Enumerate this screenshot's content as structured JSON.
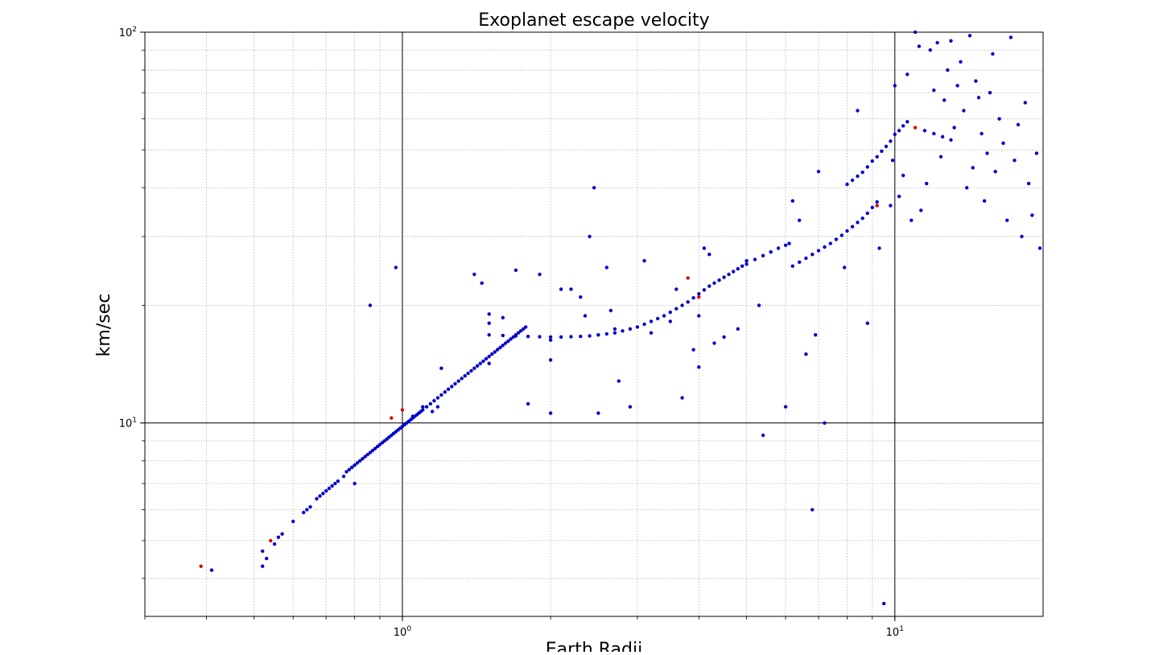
{
  "chart_data": {
    "type": "scatter",
    "title": "Exoplanet escape velocity",
    "xlabel": "Earth Radii",
    "ylabel": "km/sec",
    "x_scale": "log",
    "y_scale": "log",
    "xlim": [
      0.3,
      20
    ],
    "ylim": [
      3.2,
      100
    ],
    "grid": true,
    "legend": "none",
    "x_major_ticks": [
      {
        "value": 1,
        "base": "10",
        "exp": "0"
      },
      {
        "value": 10,
        "base": "10",
        "exp": "1"
      }
    ],
    "y_major_ticks": [
      {
        "value": 10,
        "base": "10",
        "exp": "1"
      },
      {
        "value": 100,
        "base": "10",
        "exp": "2"
      }
    ],
    "series": [
      {
        "color": "#0000cc",
        "points": [
          [
            0.41,
            4.2
          ],
          [
            0.52,
            4.7
          ],
          [
            0.52,
            4.3
          ],
          [
            0.53,
            4.5
          ],
          [
            0.55,
            4.9
          ],
          [
            0.56,
            5.1
          ],
          [
            0.57,
            5.2
          ],
          [
            0.6,
            5.6
          ],
          [
            0.63,
            5.9
          ],
          [
            0.64,
            6.0
          ],
          [
            0.65,
            6.1
          ],
          [
            0.67,
            6.4
          ],
          [
            0.68,
            6.5
          ],
          [
            0.69,
            6.6
          ],
          [
            0.7,
            6.7
          ],
          [
            0.71,
            6.8
          ],
          [
            0.72,
            6.9
          ],
          [
            0.73,
            7.0
          ],
          [
            0.74,
            7.1
          ],
          [
            0.76,
            7.3
          ],
          [
            0.77,
            7.5
          ],
          [
            0.78,
            7.6
          ],
          [
            0.79,
            7.7
          ],
          [
            0.8,
            7.8
          ],
          [
            0.8,
            7.0
          ],
          [
            0.81,
            7.9
          ],
          [
            0.82,
            8.0
          ],
          [
            0.83,
            8.1
          ],
          [
            0.84,
            8.2
          ],
          [
            0.85,
            8.3
          ],
          [
            0.86,
            8.4
          ],
          [
            0.87,
            8.5
          ],
          [
            0.88,
            8.6
          ],
          [
            0.89,
            8.7
          ],
          [
            0.9,
            8.8
          ],
          [
            0.91,
            8.9
          ],
          [
            0.92,
            9.0
          ],
          [
            0.93,
            9.1
          ],
          [
            0.94,
            9.2
          ],
          [
            0.95,
            9.3
          ],
          [
            0.96,
            9.4
          ],
          [
            0.97,
            9.5
          ],
          [
            0.98,
            9.6
          ],
          [
            0.99,
            9.7
          ],
          [
            1.0,
            9.8
          ],
          [
            1.01,
            9.9
          ],
          [
            1.02,
            10.0
          ],
          [
            1.03,
            10.1
          ],
          [
            1.04,
            10.2
          ],
          [
            1.05,
            10.3
          ],
          [
            1.06,
            10.4
          ],
          [
            1.07,
            10.5
          ],
          [
            1.08,
            10.6
          ],
          [
            1.09,
            10.7
          ],
          [
            1.1,
            10.8
          ],
          [
            1.12,
            11.0
          ],
          [
            1.14,
            11.2
          ],
          [
            1.16,
            11.4
          ],
          [
            1.18,
            11.6
          ],
          [
            1.2,
            11.8
          ],
          [
            1.22,
            12.0
          ],
          [
            1.24,
            12.2
          ],
          [
            1.26,
            12.4
          ],
          [
            1.28,
            12.6
          ],
          [
            1.3,
            12.8
          ],
          [
            1.32,
            13.0
          ],
          [
            1.34,
            13.2
          ],
          [
            1.36,
            13.4
          ],
          [
            1.38,
            13.6
          ],
          [
            1.4,
            13.8
          ],
          [
            1.42,
            14.0
          ],
          [
            1.44,
            14.2
          ],
          [
            1.46,
            14.4
          ],
          [
            1.48,
            14.6
          ],
          [
            1.5,
            14.8
          ],
          [
            1.52,
            15.0
          ],
          [
            1.54,
            15.2
          ],
          [
            1.56,
            15.4
          ],
          [
            1.58,
            15.6
          ],
          [
            1.6,
            15.8
          ],
          [
            1.62,
            16.0
          ],
          [
            1.64,
            16.2
          ],
          [
            1.66,
            16.4
          ],
          [
            1.68,
            16.6
          ],
          [
            1.7,
            16.8
          ],
          [
            1.72,
            17.0
          ],
          [
            1.74,
            17.2
          ],
          [
            1.76,
            17.4
          ],
          [
            1.78,
            17.6
          ],
          [
            1.5,
            16.8
          ],
          [
            1.6,
            16.75
          ],
          [
            1.7,
            16.7
          ],
          [
            1.8,
            16.65
          ],
          [
            1.9,
            16.62
          ],
          [
            2.0,
            16.6
          ],
          [
            2.1,
            16.6
          ],
          [
            2.2,
            16.62
          ],
          [
            2.3,
            16.65
          ],
          [
            2.4,
            16.7
          ],
          [
            2.5,
            16.8
          ],
          [
            2.6,
            16.9
          ],
          [
            2.7,
            17.0
          ],
          [
            2.8,
            17.2
          ],
          [
            2.9,
            17.4
          ],
          [
            3.0,
            17.6
          ],
          [
            3.1,
            17.9
          ],
          [
            3.2,
            18.2
          ],
          [
            3.3,
            18.5
          ],
          [
            3.4,
            18.8
          ],
          [
            3.5,
            19.2
          ],
          [
            3.6,
            19.6
          ],
          [
            3.7,
            20.0
          ],
          [
            3.8,
            20.4
          ],
          [
            3.9,
            20.9
          ],
          [
            4.0,
            21.4
          ],
          [
            4.1,
            21.9
          ],
          [
            4.2,
            22.4
          ],
          [
            4.3,
            22.8
          ],
          [
            4.4,
            23.2
          ],
          [
            4.5,
            23.6
          ],
          [
            4.6,
            24.0
          ],
          [
            4.7,
            24.4
          ],
          [
            4.8,
            24.8
          ],
          [
            4.9,
            25.2
          ],
          [
            5.0,
            25.5
          ],
          [
            5.2,
            26.2
          ],
          [
            5.4,
            26.8
          ],
          [
            5.6,
            27.4
          ],
          [
            5.8,
            28.0
          ],
          [
            6.0,
            28.5
          ],
          [
            6.1,
            28.8
          ],
          [
            6.2,
            25.2
          ],
          [
            6.4,
            25.8
          ],
          [
            6.6,
            26.4
          ],
          [
            6.8,
            27.0
          ],
          [
            7.0,
            27.6
          ],
          [
            7.2,
            28.2
          ],
          [
            7.4,
            28.8
          ],
          [
            7.6,
            29.5
          ],
          [
            7.8,
            30.2
          ],
          [
            8.0,
            31.0
          ],
          [
            8.2,
            31.8
          ],
          [
            8.4,
            32.6
          ],
          [
            8.6,
            33.4
          ],
          [
            8.8,
            34.4
          ],
          [
            9.0,
            35.6
          ],
          [
            9.2,
            36.8
          ],
          [
            8.0,
            40.8
          ],
          [
            8.2,
            41.8
          ],
          [
            8.4,
            42.8
          ],
          [
            8.6,
            43.8
          ],
          [
            8.8,
            45.2
          ],
          [
            9.0,
            46.8
          ],
          [
            9.2,
            48.0
          ],
          [
            9.4,
            49.6
          ],
          [
            9.6,
            51.0
          ],
          [
            9.8,
            52.6
          ],
          [
            10.0,
            54.8
          ],
          [
            10.2,
            56.0
          ],
          [
            10.4,
            57.6
          ],
          [
            10.6,
            59.0
          ],
          [
            11.5,
            56.0
          ],
          [
            12.0,
            55.0
          ],
          [
            12.5,
            54.0
          ],
          [
            13.0,
            53.0
          ],
          [
            0.86,
            20.0
          ],
          [
            0.97,
            25.0
          ],
          [
            1.05,
            10.4
          ],
          [
            1.1,
            11.0
          ],
          [
            1.15,
            10.7
          ],
          [
            1.18,
            11.0
          ],
          [
            1.2,
            13.8
          ],
          [
            1.4,
            24.0
          ],
          [
            1.45,
            22.8
          ],
          [
            1.5,
            19.0
          ],
          [
            1.5,
            18.0
          ],
          [
            1.5,
            14.2
          ],
          [
            1.6,
            18.6
          ],
          [
            1.7,
            24.6
          ],
          [
            1.8,
            11.2
          ],
          [
            1.9,
            24.0
          ],
          [
            2.0,
            10.6
          ],
          [
            2.0,
            14.5
          ],
          [
            2.0,
            16.3
          ],
          [
            2.1,
            22.0
          ],
          [
            2.2,
            22.0
          ],
          [
            2.3,
            21.0
          ],
          [
            2.35,
            18.8
          ],
          [
            2.4,
            30.0
          ],
          [
            2.45,
            40.0
          ],
          [
            2.5,
            10.6
          ],
          [
            2.6,
            25.0
          ],
          [
            2.65,
            19.4
          ],
          [
            2.7,
            17.4
          ],
          [
            2.75,
            12.8
          ],
          [
            2.9,
            11.0
          ],
          [
            3.1,
            26.0
          ],
          [
            3.2,
            17.0
          ],
          [
            3.5,
            18.2
          ],
          [
            3.6,
            22.0
          ],
          [
            3.7,
            11.6
          ],
          [
            3.9,
            15.4
          ],
          [
            4.0,
            13.9
          ],
          [
            4.0,
            18.8
          ],
          [
            4.1,
            28.0
          ],
          [
            4.2,
            27.0
          ],
          [
            4.3,
            16.0
          ],
          [
            4.5,
            16.6
          ],
          [
            4.8,
            17.4
          ],
          [
            5.0,
            26.0
          ],
          [
            5.3,
            20.0
          ],
          [
            5.4,
            9.3
          ],
          [
            6.0,
            11.0
          ],
          [
            6.2,
            37.0
          ],
          [
            6.4,
            33.0
          ],
          [
            6.6,
            15.0
          ],
          [
            6.8,
            6.0
          ],
          [
            6.9,
            16.8
          ],
          [
            7.0,
            44.0
          ],
          [
            7.2,
            10.0
          ],
          [
            7.9,
            25.0
          ],
          [
            8.4,
            63.0
          ],
          [
            8.8,
            18.0
          ],
          [
            9.3,
            28.0
          ],
          [
            9.5,
            3.45
          ],
          [
            9.8,
            36.0
          ],
          [
            9.9,
            47.0
          ],
          [
            10.0,
            73.0
          ],
          [
            10.2,
            38.0
          ],
          [
            10.4,
            43.0
          ],
          [
            10.6,
            78.0
          ],
          [
            10.8,
            33.0
          ],
          [
            11.0,
            100.0
          ],
          [
            11.2,
            92.0
          ],
          [
            11.3,
            35.0
          ],
          [
            11.6,
            41.0
          ],
          [
            11.8,
            90.0
          ],
          [
            12.0,
            71.0
          ],
          [
            12.2,
            94.0
          ],
          [
            12.4,
            48.0
          ],
          [
            12.6,
            67.0
          ],
          [
            12.8,
            80.0
          ],
          [
            13.0,
            95.0
          ],
          [
            13.2,
            57.0
          ],
          [
            13.4,
            73.0
          ],
          [
            13.6,
            84.0
          ],
          [
            13.8,
            63.0
          ],
          [
            14.0,
            40.0
          ],
          [
            14.2,
            98.0
          ],
          [
            14.4,
            45.0
          ],
          [
            14.6,
            75.0
          ],
          [
            14.8,
            68.0
          ],
          [
            15.0,
            55.0
          ],
          [
            15.2,
            37.0
          ],
          [
            15.4,
            49.0
          ],
          [
            15.6,
            70.0
          ],
          [
            15.8,
            88.0
          ],
          [
            16.0,
            44.0
          ],
          [
            16.3,
            60.0
          ],
          [
            16.6,
            52.0
          ],
          [
            16.9,
            33.0
          ],
          [
            17.2,
            97.0
          ],
          [
            17.5,
            47.0
          ],
          [
            17.8,
            58.0
          ],
          [
            18.1,
            30.0
          ],
          [
            18.4,
            66.0
          ],
          [
            18.7,
            41.0
          ],
          [
            19.0,
            34.0
          ],
          [
            19.4,
            49.0
          ],
          [
            19.7,
            28.0
          ]
        ]
      },
      {
        "color": "#dd0000",
        "points": [
          [
            0.39,
            4.3
          ],
          [
            0.54,
            5.0
          ],
          [
            0.95,
            10.3
          ],
          [
            1.0,
            10.8
          ],
          [
            3.8,
            23.5
          ],
          [
            4.0,
            21.0
          ],
          [
            9.2,
            36.0
          ],
          [
            11.0,
            57.0
          ]
        ]
      }
    ]
  }
}
